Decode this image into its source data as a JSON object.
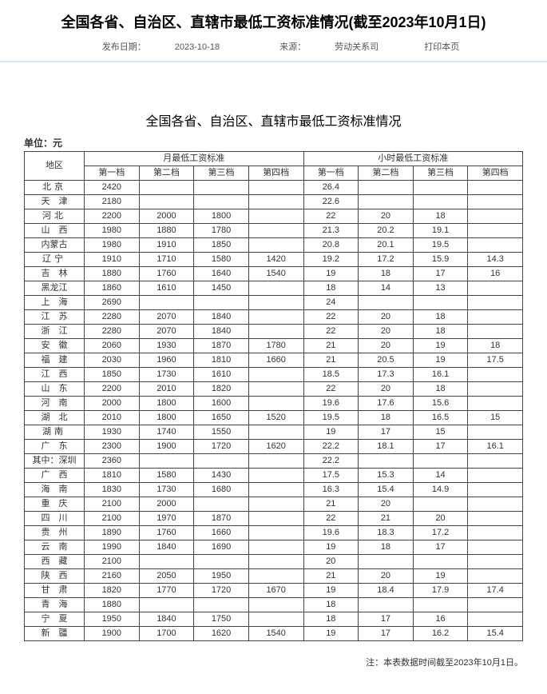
{
  "title": "全国各省、自治区、直辖市最低工资标准情况(截至2023年10月1日)",
  "meta": {
    "publish_label": "发布日期：",
    "publish_date": "2023-10-18",
    "source_label": "来源：",
    "source_value": "劳动关系司",
    "print_label": "打印本页"
  },
  "subtitle": "全国各省、自治区、直辖市最低工资标准情况",
  "unit": "单位：元",
  "header": {
    "region": "地区",
    "monthly": "月最低工资标准",
    "hourly": "小时最低工资标准",
    "tier1": "第一档",
    "tier2": "第二档",
    "tier3": "第三档",
    "tier4": "第四档"
  },
  "rows": [
    {
      "region": "北京",
      "tight": false,
      "m": [
        "2420",
        "",
        "",
        ""
      ],
      "h": [
        "26.4",
        "",
        "",
        ""
      ]
    },
    {
      "region": "天　津",
      "tight": true,
      "m": [
        "2180",
        "",
        "",
        ""
      ],
      "h": [
        "22.6",
        "",
        "",
        ""
      ]
    },
    {
      "region": "河北",
      "tight": false,
      "m": [
        "2200",
        "2000",
        "1800",
        ""
      ],
      "h": [
        "22",
        "20",
        "18",
        ""
      ]
    },
    {
      "region": "山　西",
      "tight": true,
      "m": [
        "1980",
        "1880",
        "1780",
        ""
      ],
      "h": [
        "21.3",
        "20.2",
        "19.1",
        ""
      ]
    },
    {
      "region": "内蒙古",
      "tight": true,
      "m": [
        "1980",
        "1910",
        "1850",
        ""
      ],
      "h": [
        "20.8",
        "20.1",
        "19.5",
        ""
      ]
    },
    {
      "region": "辽宁",
      "tight": false,
      "m": [
        "1910",
        "1710",
        "1580",
        "1420"
      ],
      "h": [
        "19.2",
        "17.2",
        "15.9",
        "14.3"
      ]
    },
    {
      "region": "吉　林",
      "tight": true,
      "m": [
        "1880",
        "1760",
        "1640",
        "1540"
      ],
      "h": [
        "19",
        "18",
        "17",
        "16"
      ]
    },
    {
      "region": "黑龙江",
      "tight": true,
      "m": [
        "1860",
        "1610",
        "1450",
        ""
      ],
      "h": [
        "18",
        "14",
        "13",
        ""
      ]
    },
    {
      "region": "上　海",
      "tight": true,
      "m": [
        "2690",
        "",
        "",
        ""
      ],
      "h": [
        "24",
        "",
        "",
        ""
      ]
    },
    {
      "region": "江　苏",
      "tight": true,
      "m": [
        "2280",
        "2070",
        "1840",
        ""
      ],
      "h": [
        "22",
        "20",
        "18",
        ""
      ]
    },
    {
      "region": "浙　江",
      "tight": true,
      "m": [
        "2280",
        "2070",
        "1840",
        ""
      ],
      "h": [
        "22",
        "20",
        "18",
        ""
      ]
    },
    {
      "region": "安　徽",
      "tight": true,
      "m": [
        "2060",
        "1930",
        "1870",
        "1780"
      ],
      "h": [
        "21",
        "20",
        "19",
        "18"
      ]
    },
    {
      "region": "福　建",
      "tight": true,
      "m": [
        "2030",
        "1960",
        "1810",
        "1660"
      ],
      "h": [
        "21",
        "20.5",
        "19",
        "17.5"
      ]
    },
    {
      "region": "江　西",
      "tight": true,
      "m": [
        "1850",
        "1730",
        "1610",
        ""
      ],
      "h": [
        "18.5",
        "17.3",
        "16.1",
        ""
      ]
    },
    {
      "region": "山　东",
      "tight": true,
      "m": [
        "2200",
        "2010",
        "1820",
        ""
      ],
      "h": [
        "22",
        "20",
        "18",
        ""
      ]
    },
    {
      "region": "河　南",
      "tight": true,
      "m": [
        "2000",
        "1800",
        "1600",
        ""
      ],
      "h": [
        "19.6",
        "17.6",
        "15.6",
        ""
      ]
    },
    {
      "region": "湖　北",
      "tight": true,
      "m": [
        "2010",
        "1800",
        "1650",
        "1520"
      ],
      "h": [
        "19.5",
        "18",
        "16.5",
        "15"
      ]
    },
    {
      "region": "湖南",
      "tight": false,
      "m": [
        "1930",
        "1740",
        "1550",
        ""
      ],
      "h": [
        "19",
        "17",
        "15",
        ""
      ]
    },
    {
      "region": "广　东",
      "tight": true,
      "m": [
        "2300",
        "1900",
        "1720",
        "1620"
      ],
      "h": [
        "22.2",
        "18.1",
        "17",
        "16.1"
      ]
    },
    {
      "region": "其中：深圳",
      "tight": true,
      "m": [
        "2360",
        "",
        "",
        ""
      ],
      "h": [
        "22.2",
        "",
        "",
        ""
      ]
    },
    {
      "region": "广　西",
      "tight": true,
      "m": [
        "1810",
        "1580",
        "1430",
        ""
      ],
      "h": [
        "17.5",
        "15.3",
        "14",
        ""
      ]
    },
    {
      "region": "海　南",
      "tight": true,
      "m": [
        "1830",
        "1730",
        "1680",
        ""
      ],
      "h": [
        "16.3",
        "15.4",
        "14.9",
        ""
      ]
    },
    {
      "region": "重　庆",
      "tight": true,
      "m": [
        "2100",
        "2000",
        "",
        ""
      ],
      "h": [
        "21",
        "20",
        "",
        ""
      ]
    },
    {
      "region": "四　川",
      "tight": true,
      "m": [
        "2100",
        "1970",
        "1870",
        ""
      ],
      "h": [
        "22",
        "21",
        "20",
        ""
      ]
    },
    {
      "region": "贵　州",
      "tight": true,
      "m": [
        "1890",
        "1760",
        "1660",
        ""
      ],
      "h": [
        "19.6",
        "18.3",
        "17.2",
        ""
      ]
    },
    {
      "region": "云　南",
      "tight": true,
      "m": [
        "1990",
        "1840",
        "1690",
        ""
      ],
      "h": [
        "19",
        "18",
        "17",
        ""
      ]
    },
    {
      "region": "西　藏",
      "tight": true,
      "m": [
        "2100",
        "",
        "",
        ""
      ],
      "h": [
        "20",
        "",
        "",
        ""
      ]
    },
    {
      "region": "陕　西",
      "tight": true,
      "m": [
        "2160",
        "2050",
        "1950",
        ""
      ],
      "h": [
        "21",
        "20",
        "19",
        ""
      ]
    },
    {
      "region": "甘　肃",
      "tight": true,
      "m": [
        "1820",
        "1770",
        "1720",
        "1670"
      ],
      "h": [
        "19",
        "18.4",
        "17.9",
        "17.4"
      ]
    },
    {
      "region": "青　海",
      "tight": true,
      "m": [
        "1880",
        "",
        "",
        ""
      ],
      "h": [
        "18",
        "",
        "",
        ""
      ]
    },
    {
      "region": "宁　夏",
      "tight": true,
      "m": [
        "1950",
        "1840",
        "1750",
        ""
      ],
      "h": [
        "18",
        "17",
        "16",
        ""
      ]
    },
    {
      "region": "新　疆",
      "tight": true,
      "m": [
        "1900",
        "1700",
        "1620",
        "1540"
      ],
      "h": [
        "19",
        "17",
        "16.2",
        "15.4"
      ]
    }
  ],
  "footnote": "注：本表数据时间截至2023年10月1日。"
}
